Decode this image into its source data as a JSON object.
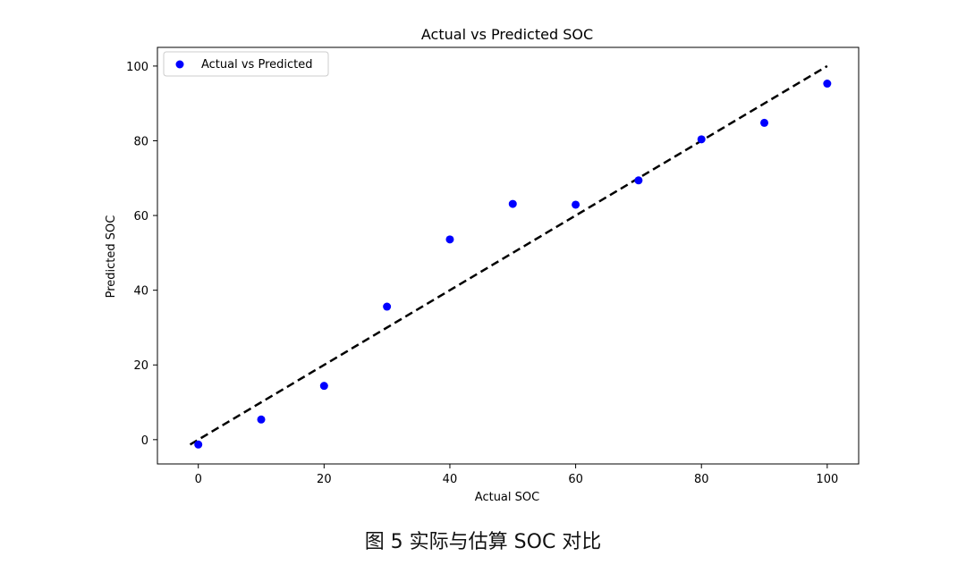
{
  "figure": {
    "caption": "图 5 实际与估算 SOC 对比"
  },
  "chart_data": {
    "type": "scatter",
    "title": "Actual vs Predicted SOC",
    "xlabel": "Actual SOC",
    "ylabel": "Predicted SOC",
    "xlim": [
      -6.5,
      105
    ],
    "ylim": [
      -6.5,
      105
    ],
    "xticks": [
      0,
      20,
      40,
      60,
      80,
      100
    ],
    "yticks": [
      0,
      20,
      40,
      60,
      80,
      100
    ],
    "grid": false,
    "legend_position": "top-left",
    "series": [
      {
        "name": "Actual vs Predicted",
        "color": "#0000ff",
        "points": [
          {
            "x": 0,
            "y": -1.3
          },
          {
            "x": 10,
            "y": 5.4
          },
          {
            "x": 20,
            "y": 14.4
          },
          {
            "x": 30,
            "y": 35.6
          },
          {
            "x": 40,
            "y": 53.6
          },
          {
            "x": 50,
            "y": 63.1
          },
          {
            "x": 60,
            "y": 62.9
          },
          {
            "x": 70,
            "y": 69.4
          },
          {
            "x": 80,
            "y": 80.4
          },
          {
            "x": 90,
            "y": 84.8
          },
          {
            "x": 100,
            "y": 95.3
          }
        ]
      }
    ],
    "reference_line": {
      "style": "dashed",
      "color": "#000000",
      "points": [
        [
          -1.3,
          -1.3
        ],
        [
          100,
          100
        ]
      ]
    }
  }
}
